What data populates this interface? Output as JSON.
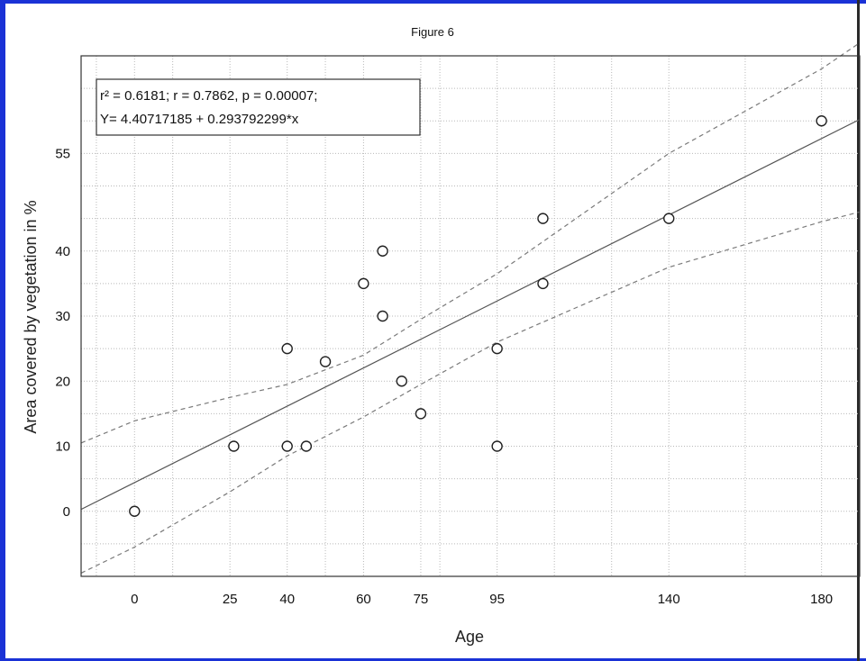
{
  "chart_data": {
    "type": "scatter",
    "title": "Figure 6",
    "xlabel": "Age",
    "ylabel": "Area covered by vegetation in %",
    "x_ticks": [
      0,
      25,
      40,
      60,
      75,
      95,
      140,
      180
    ],
    "y_ticks": [
      0,
      10,
      20,
      30,
      40,
      55
    ],
    "xlim": [
      -14,
      190
    ],
    "ylim": [
      -10,
      70
    ],
    "grid": true,
    "annotation_lines": [
      "r² = 0.6181;  r = 0.7862, p = 0.00007;",
      "Y= 4.40717185 + 0.293792299*x"
    ],
    "points": [
      {
        "x": 0,
        "y": 0
      },
      {
        "x": 26,
        "y": 10
      },
      {
        "x": 40,
        "y": 25
      },
      {
        "x": 40,
        "y": 10
      },
      {
        "x": 45,
        "y": 10
      },
      {
        "x": 50,
        "y": 23
      },
      {
        "x": 60,
        "y": 35
      },
      {
        "x": 65,
        "y": 40
      },
      {
        "x": 65,
        "y": 30
      },
      {
        "x": 70,
        "y": 20
      },
      {
        "x": 75,
        "y": 15
      },
      {
        "x": 95,
        "y": 25
      },
      {
        "x": 95,
        "y": 10
      },
      {
        "x": 107,
        "y": 45
      },
      {
        "x": 107,
        "y": 35
      },
      {
        "x": 140,
        "y": 45
      },
      {
        "x": 180,
        "y": 60
      }
    ],
    "regression": {
      "intercept": 4.40717185,
      "slope": 0.293792299
    },
    "confidence_upper": [
      {
        "x": -14,
        "y": 10.5
      },
      {
        "x": 0,
        "y": 13.9
      },
      {
        "x": 25,
        "y": 17.5
      },
      {
        "x": 40,
        "y": 19.5
      },
      {
        "x": 60,
        "y": 24.0
      },
      {
        "x": 75,
        "y": 29.5
      },
      {
        "x": 95,
        "y": 36.5
      },
      {
        "x": 140,
        "y": 55.0
      },
      {
        "x": 180,
        "y": 68.0
      },
      {
        "x": 190,
        "y": 72.0
      }
    ],
    "confidence_lower": [
      {
        "x": -14,
        "y": -9.5
      },
      {
        "x": 0,
        "y": -5.5
      },
      {
        "x": 25,
        "y": 3.0
      },
      {
        "x": 40,
        "y": 8.5
      },
      {
        "x": 60,
        "y": 14.5
      },
      {
        "x": 75,
        "y": 19.5
      },
      {
        "x": 95,
        "y": 26.0
      },
      {
        "x": 140,
        "y": 37.5
      },
      {
        "x": 180,
        "y": 44.5
      },
      {
        "x": 190,
        "y": 46.0
      }
    ],
    "colors": {
      "line": "#555555",
      "band": "#7a7a7a",
      "grid": "#b9b9b9",
      "frame": "#1a32d6"
    }
  }
}
